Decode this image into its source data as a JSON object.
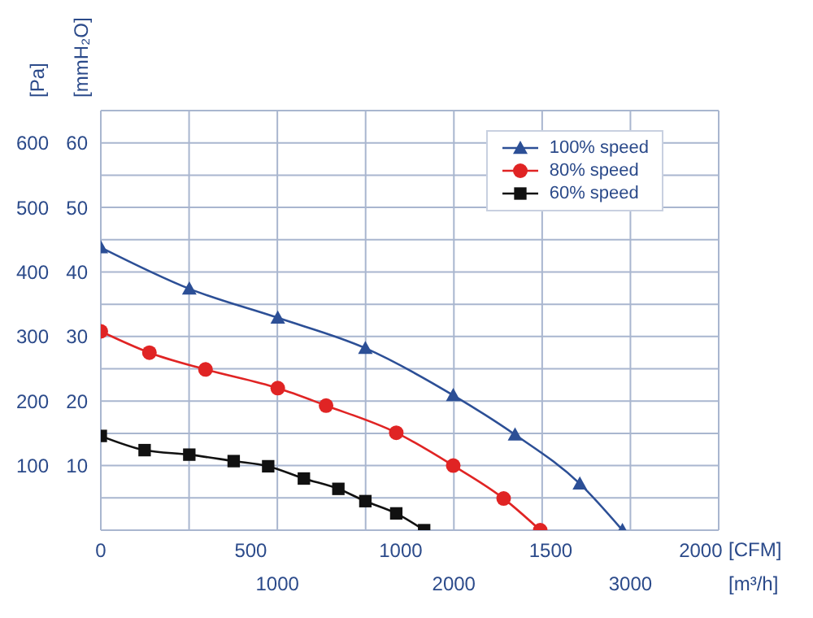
{
  "chart_data": {
    "type": "line",
    "xlabel": "[CFM]",
    "x2label": "[m³/h]",
    "ylabel": "[Pa]",
    "y2label": "[mmH₂O]",
    "xlim": [
      0,
      2060
    ],
    "xticks": [
      0,
      500,
      1000,
      1500,
      2000
    ],
    "x2lim": [
      0,
      3500
    ],
    "x2ticks": [
      {
        "value": 0,
        "label": null
      },
      {
        "value": 500,
        "label": null
      },
      1000,
      {
        "value": 1500,
        "label": null
      },
      2000,
      {
        "value": 2500,
        "label": null
      },
      3000,
      {
        "value": 3500,
        "label": null
      }
    ],
    "ylim": [
      0,
      650
    ],
    "yticks": [
      {
        "value": 0,
        "label": null
      },
      {
        "value": 50,
        "label": null
      },
      100,
      {
        "value": 150,
        "label": null
      },
      200,
      {
        "value": 250,
        "label": null
      },
      300,
      {
        "value": 350,
        "label": null
      },
      400,
      {
        "value": 450,
        "label": null
      },
      500,
      {
        "value": 550,
        "label": null
      },
      600,
      {
        "value": 650,
        "label": null
      }
    ],
    "y2lim": [
      0,
      65
    ],
    "y2ticks": [
      10,
      20,
      30,
      40,
      50,
      60
    ],
    "grid": true,
    "legend": "top right",
    "series": [
      {
        "name": "100% speed",
        "color": "#2c4f96",
        "marker": "triangle",
        "x": [
          0,
          295,
          590,
          882,
          1175,
          1381,
          1597,
          1739
        ],
        "values": [
          438,
          374,
          329,
          282,
          209,
          148,
          72,
          0
        ]
      },
      {
        "name": "80% speed",
        "color": "#e02424",
        "marker": "circle",
        "x": [
          0,
          162,
          349,
          590,
          751,
          985,
          1175,
          1343,
          1465
        ],
        "values": [
          308,
          275,
          249,
          220,
          193,
          151,
          100,
          49,
          0
        ]
      },
      {
        "name": "60% speed",
        "color": "#111111",
        "marker": "square",
        "x": [
          0,
          146,
          295,
          443,
          558,
          677,
          792,
          882,
          985,
          1078
        ],
        "values": [
          146,
          124,
          117,
          107,
          99,
          80,
          64,
          45,
          26,
          0
        ]
      }
    ]
  }
}
